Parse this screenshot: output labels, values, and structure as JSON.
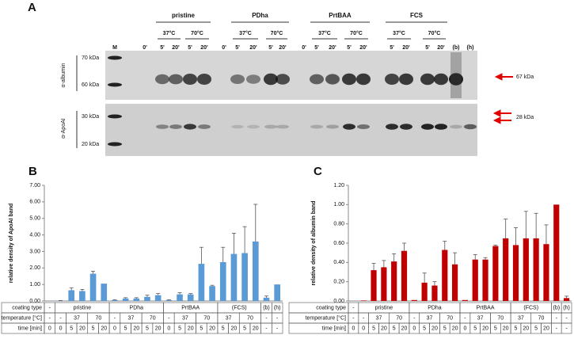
{
  "figure_a": {
    "panel": "A",
    "groups": [
      "pristine",
      "PDha",
      "PrtBAA",
      "FCS"
    ],
    "temperatures": [
      [
        "37°C",
        "70°C"
      ],
      [
        "37°C",
        "70°C"
      ],
      [
        "37°C",
        "70°C"
      ],
      [
        "37°C",
        "70°C"
      ]
    ],
    "lanes": [
      "M",
      "0'",
      "5'",
      "20'",
      "5'",
      "20'",
      "0'",
      "5'",
      "20'",
      "5'",
      "20'",
      "0'",
      "5'",
      "20'",
      "5'",
      "20'",
      "5'",
      "20'",
      "5'",
      "20'",
      "(b)",
      "(h)"
    ],
    "markers": [
      "70 kDa",
      "60 kDa",
      "30 kDa",
      "20 kDa"
    ],
    "antibodies": [
      "α-albumin",
      "α-ApoAI"
    ],
    "arrows": [
      "67 kDa",
      "28 kDa"
    ]
  },
  "chart_data": [
    {
      "type": "bar",
      "panel": "B",
      "ylabel": "relative density of ApoAI band",
      "color": "#5b9bd5",
      "grid": false,
      "values": [
        0,
        0.02,
        0.65,
        0.6,
        1.65,
        1.05,
        0.05,
        0.15,
        0.15,
        0.25,
        0.35,
        0.05,
        0.4,
        0.4,
        2.25,
        0.9,
        2.35,
        2.85,
        2.9,
        3.6,
        0.2,
        1.0
      ],
      "errors": [
        0,
        0.01,
        0.15,
        0.1,
        0.15,
        0,
        0.02,
        0.05,
        0.05,
        0.1,
        0.1,
        0.02,
        0.1,
        0.05,
        1.0,
        0.05,
        0.9,
        1.25,
        1.6,
        2.25,
        0.1,
        0
      ],
      "ylim": [
        0,
        7
      ],
      "yticks": [
        {
          "value": 0,
          "label": "0.00"
        },
        {
          "value": 1,
          "label": "1.00"
        },
        {
          "value": 2,
          "label": "2.00"
        },
        {
          "value": 3,
          "label": "3.00"
        },
        {
          "value": 4,
          "label": "4.00"
        },
        {
          "value": 5,
          "label": "5.00"
        },
        {
          "value": 6,
          "label": "6.00"
        },
        {
          "value": 7,
          "label": "7.00"
        }
      ],
      "table": [
        {
          "label": "coating type",
          "cells": [
            "-",
            {
              "text": "pristine",
              "span": 5
            },
            {
              "text": "PDha",
              "span": 5
            },
            {
              "text": "PrtBAA",
              "span": 5
            },
            {
              "text": "(FCS)",
              "span": 4
            },
            "(b)",
            "(h)"
          ]
        },
        {
          "label": "temperature [°C]",
          "cells": [
            "-",
            "-",
            {
              "text": "37",
              "span": 2
            },
            {
              "text": "70",
              "span": 2
            },
            "-",
            {
              "text": "37",
              "span": 2
            },
            {
              "text": "70",
              "span": 2
            },
            "-",
            {
              "text": "37",
              "span": 2
            },
            {
              "text": "70",
              "span": 2
            },
            {
              "text": "37",
              "span": 2
            },
            {
              "text": "70",
              "span": 2
            },
            "-",
            "-"
          ]
        },
        {
          "label": "time [min]",
          "cells": [
            "0",
            "0",
            "5",
            "20",
            "5",
            "20",
            "0",
            "5",
            "20",
            "5",
            "20",
            "0",
            "5",
            "20",
            "5",
            "20",
            "5",
            "20",
            "5",
            "20",
            "-",
            "-"
          ]
        }
      ]
    },
    {
      "type": "bar",
      "panel": "C",
      "ylabel": "relative density of albumin band",
      "color": "#c00000",
      "grid": false,
      "values": [
        0,
        0.005,
        0.32,
        0.35,
        0.41,
        0.52,
        0.01,
        0.19,
        0.16,
        0.53,
        0.38,
        0.01,
        0.43,
        0.43,
        0.57,
        0.65,
        0.58,
        0.65,
        0.65,
        0.59,
        1.0,
        0.03
      ],
      "errors": [
        0,
        0,
        0.07,
        0.07,
        0.08,
        0.08,
        0,
        0.1,
        0.04,
        0.09,
        0.12,
        0,
        0.05,
        0.02,
        0.01,
        0.2,
        0.18,
        0.28,
        0.26,
        0.2,
        0,
        0.02
      ],
      "ylim": [
        0,
        1.2
      ],
      "yticks": [
        {
          "value": 0,
          "label": "0.00"
        },
        {
          "value": 0.2,
          "label": "0.20"
        },
        {
          "value": 0.4,
          "label": "0.40"
        },
        {
          "value": 0.6,
          "label": "0.60"
        },
        {
          "value": 0.8,
          "label": "0.80"
        },
        {
          "value": 1,
          "label": "1.00"
        },
        {
          "value": 1.2,
          "label": "1.20"
        }
      ],
      "table": [
        {
          "label": "coating type",
          "cells": [
            "-",
            {
              "text": "pristine",
              "span": 5
            },
            {
              "text": "PDha",
              "span": 5
            },
            {
              "text": "PrtBAA",
              "span": 5
            },
            {
              "text": "(FCS)",
              "span": 4
            },
            "(b)",
            "(h)"
          ]
        },
        {
          "label": "temperature [°C]",
          "cells": [
            "-",
            "-",
            {
              "text": "37",
              "span": 2
            },
            {
              "text": "70",
              "span": 2
            },
            "-",
            {
              "text": "37",
              "span": 2
            },
            {
              "text": "70",
              "span": 2
            },
            "-",
            {
              "text": "37",
              "span": 2
            },
            {
              "text": "70",
              "span": 2
            },
            {
              "text": "37",
              "span": 2
            },
            {
              "text": "70",
              "span": 2
            },
            "-",
            "-"
          ]
        },
        {
          "label": "time [min]",
          "cells": [
            "0",
            "0",
            "5",
            "20",
            "5",
            "20",
            "0",
            "5",
            "20",
            "5",
            "20",
            "0",
            "5",
            "20",
            "5",
            "20",
            "5",
            "20",
            "5",
            "20",
            "-",
            "-"
          ]
        }
      ]
    }
  ]
}
